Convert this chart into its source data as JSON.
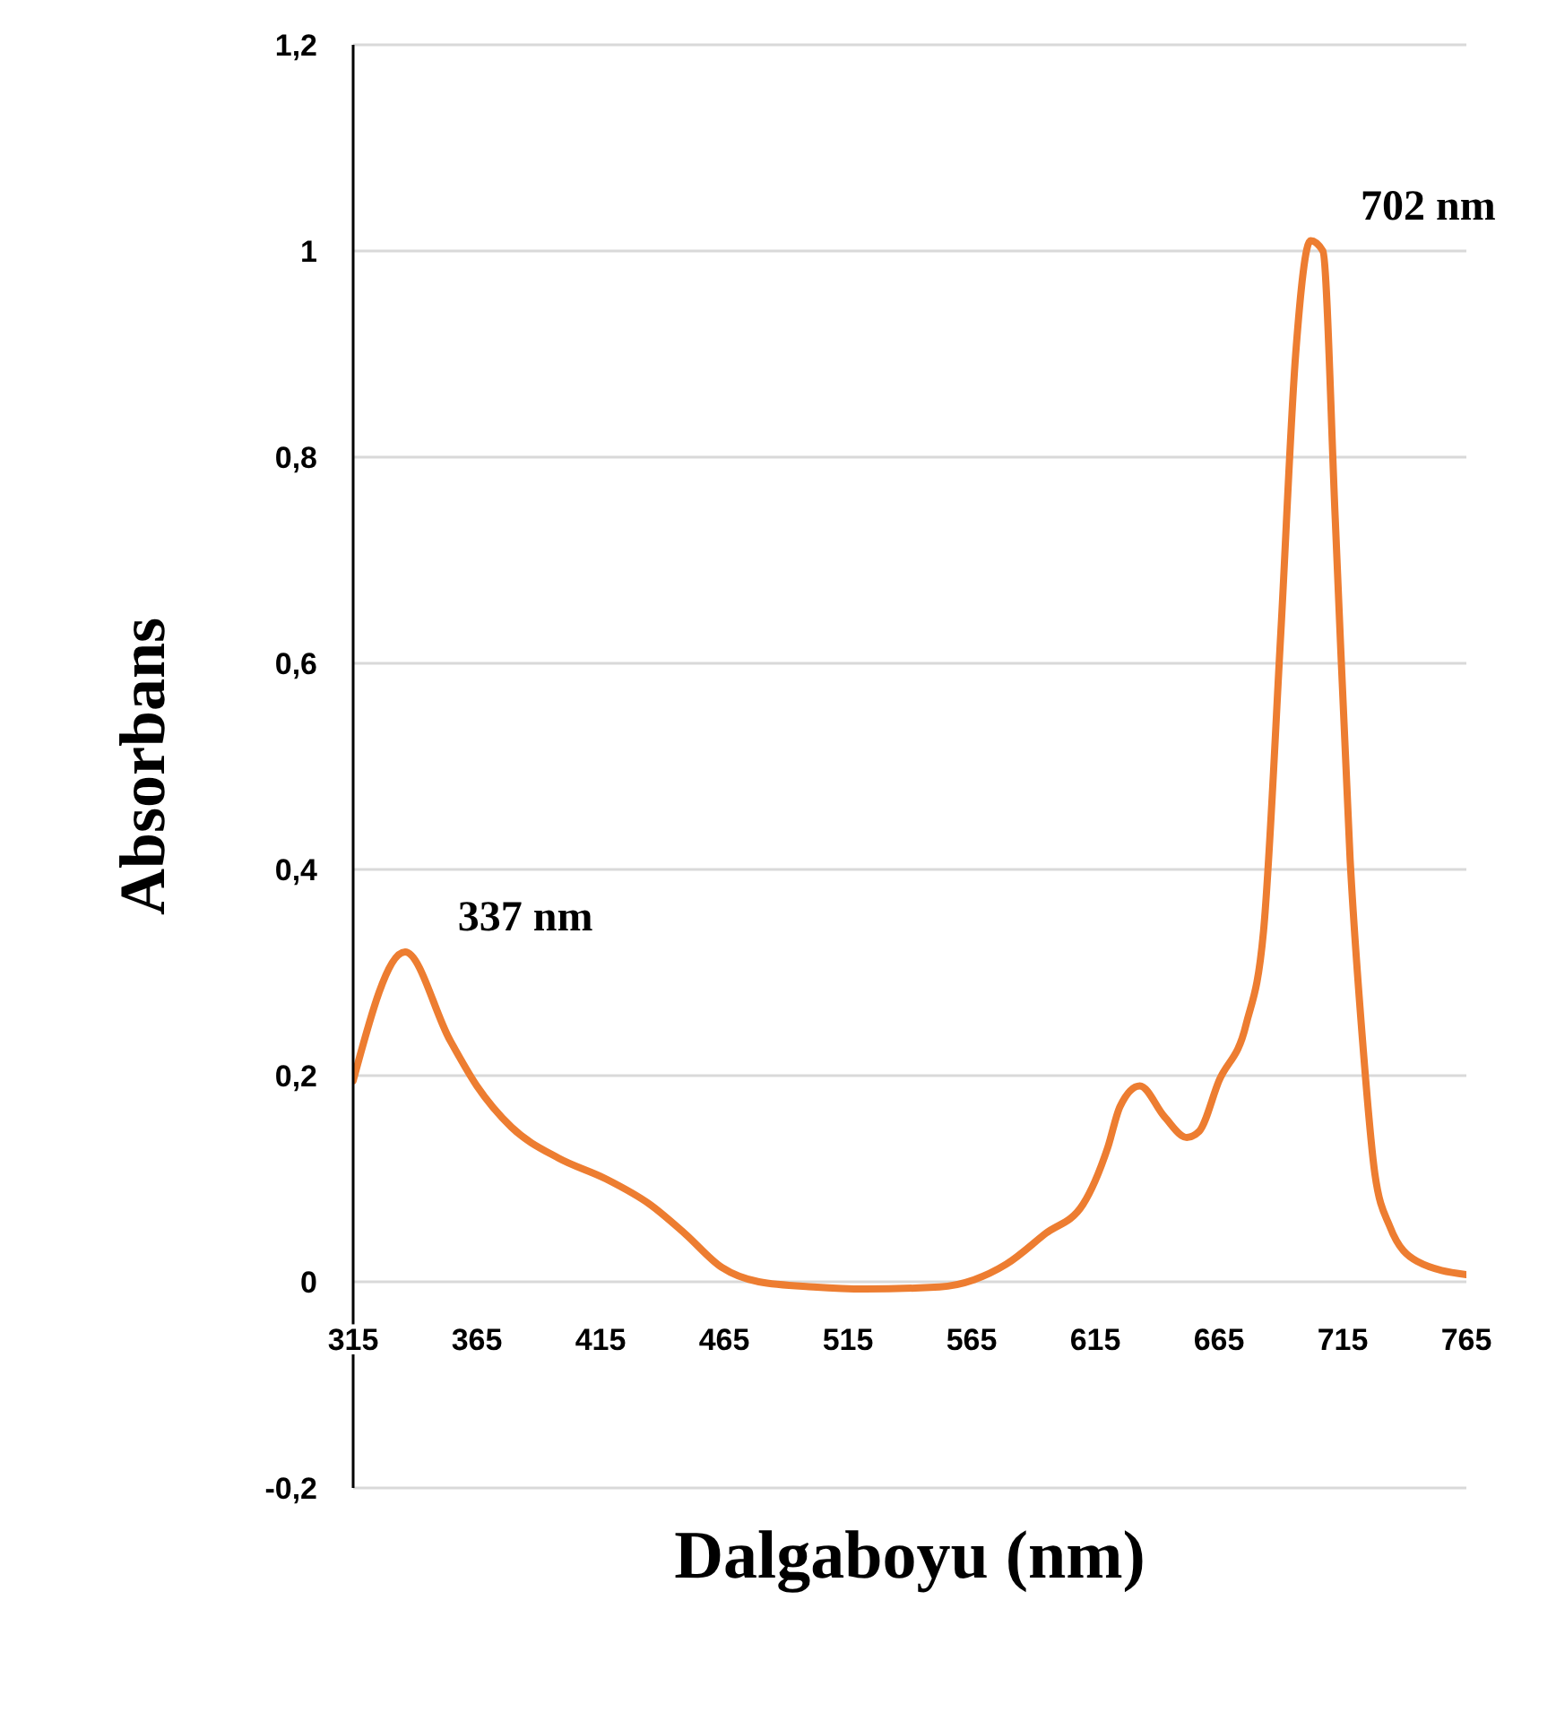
{
  "chart_data": {
    "type": "line",
    "xlabel": "Dalgaboyu (nm)",
    "ylabel": "Absorbans",
    "x": [
      315,
      336,
      354,
      365,
      379,
      398,
      417,
      435,
      449,
      464,
      479,
      501,
      522,
      552,
      566,
      579,
      595,
      610,
      620,
      625,
      633,
      643,
      652,
      657,
      665,
      676,
      683,
      690,
      696,
      702,
      707,
      712,
      718,
      723,
      728,
      734,
      745,
      765
    ],
    "series": [
      {
        "color": "#ed7d31",
        "values": [
          0.195,
          0.32,
          0.235,
          0.19,
          0.15,
          0.12,
          0.1,
          0.075,
          0.047,
          0.014,
          0.0,
          -0.005,
          -0.007,
          -0.005,
          0.002,
          0.017,
          0.047,
          0.075,
          0.13,
          0.17,
          0.19,
          0.16,
          0.14,
          0.146,
          0.195,
          0.25,
          0.34,
          0.63,
          0.9,
          1.01,
          1.0,
          0.74,
          0.41,
          0.235,
          0.105,
          0.054,
          0.02,
          0.007
        ]
      }
    ],
    "xlim": [
      315,
      765
    ],
    "xticks": [
      315,
      365,
      415,
      465,
      515,
      565,
      615,
      665,
      715,
      765
    ],
    "ylim": [
      -0.2,
      1.2
    ],
    "yticks": [
      {
        "value": -0.2,
        "label": "-0,2"
      },
      0,
      {
        "value": 0.2,
        "label": "0,2"
      },
      {
        "value": 0.4,
        "label": "0,4"
      },
      {
        "value": 0.6,
        "label": "0,6"
      },
      {
        "value": 0.8,
        "label": "0,8"
      },
      1,
      {
        "value": 1.2,
        "label": "1,2"
      }
    ],
    "grid": "y",
    "legend": false,
    "marker": "none",
    "line_style": "solid",
    "annotations": [
      {
        "text": "337 nm",
        "x": 337,
        "y": 0.32
      },
      {
        "text": "702 nm",
        "x": 702,
        "y": 1.01
      }
    ]
  }
}
